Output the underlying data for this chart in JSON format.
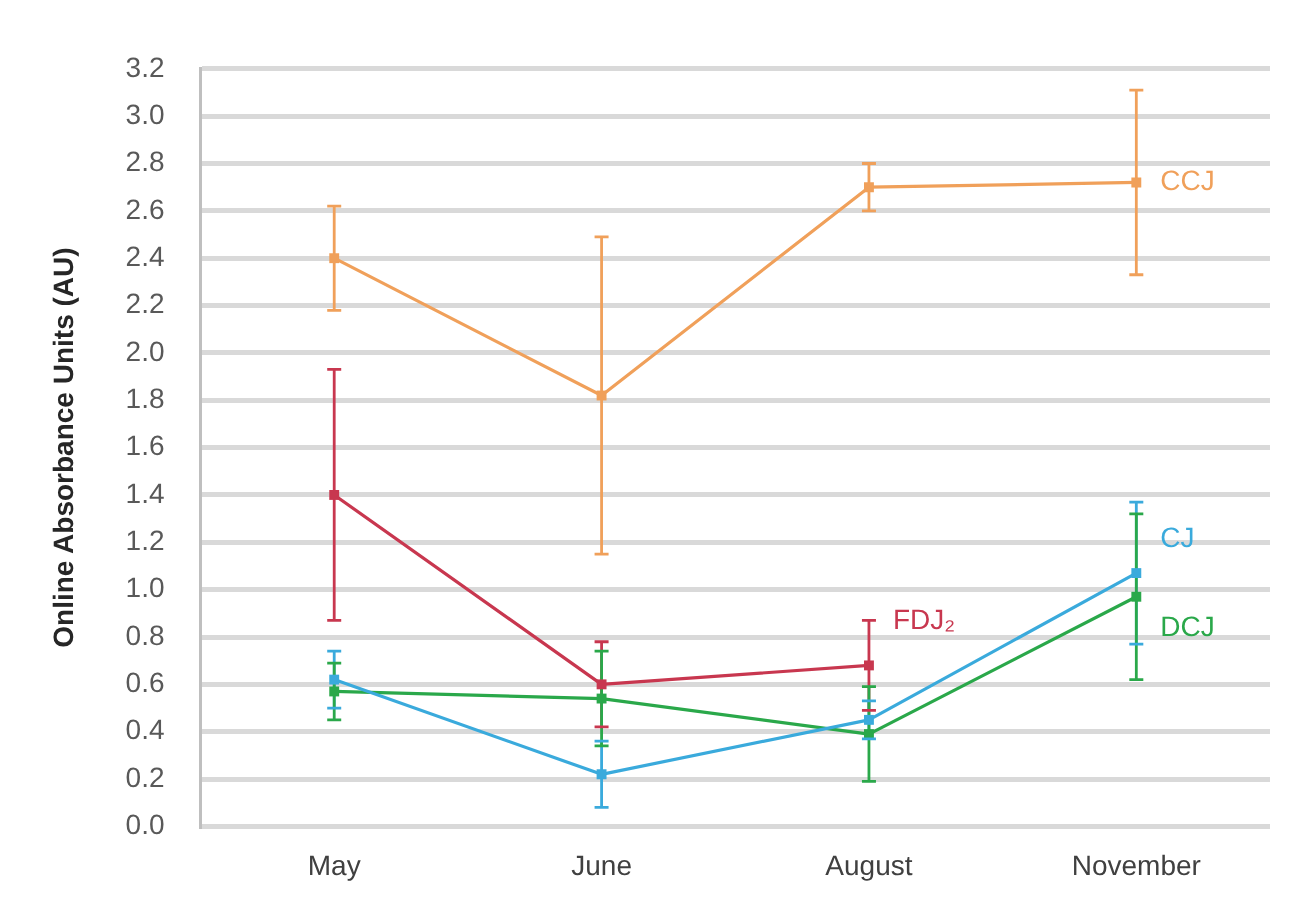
{
  "chart_data": {
    "type": "line",
    "ylabel": "Online Absorbance Units (AU)",
    "categories": [
      "May",
      "June",
      "August",
      "November"
    ],
    "series": [
      {
        "name": "CCJ",
        "color": "#f0a05a",
        "values": [
          2.4,
          1.82,
          2.7,
          2.72
        ],
        "errors": [
          0.22,
          0.67,
          0.1,
          0.39
        ]
      },
      {
        "name": "FDJ₂",
        "color": "#c8374f",
        "values": [
          1.4,
          0.6,
          0.68,
          null
        ],
        "errors": [
          0.53,
          0.18,
          0.19,
          null
        ]
      },
      {
        "name": "CJ",
        "color": "#3aaadc",
        "values": [
          0.62,
          0.22,
          0.45,
          1.07
        ],
        "errors": [
          0.12,
          0.14,
          0.08,
          0.3
        ]
      },
      {
        "name": "DCJ",
        "color": "#2aa84a",
        "values": [
          0.57,
          0.54,
          0.39,
          0.97
        ],
        "errors": [
          0.12,
          0.2,
          0.2,
          0.35
        ]
      }
    ],
    "ylim": [
      0,
      3.2
    ],
    "yticks": [
      {
        "value": 0,
        "label": "0.0"
      },
      0.2,
      0.4,
      0.6,
      0.8,
      {
        "value": 1,
        "label": "1.0"
      },
      1.2,
      1.4,
      1.6,
      1.8,
      {
        "value": 2,
        "label": "2.0"
      },
      2.2,
      2.4,
      2.6,
      2.8,
      {
        "value": 3,
        "label": "3.0"
      },
      3.2
    ],
    "grid": "y",
    "marker": "square",
    "line_style": "solid"
  }
}
